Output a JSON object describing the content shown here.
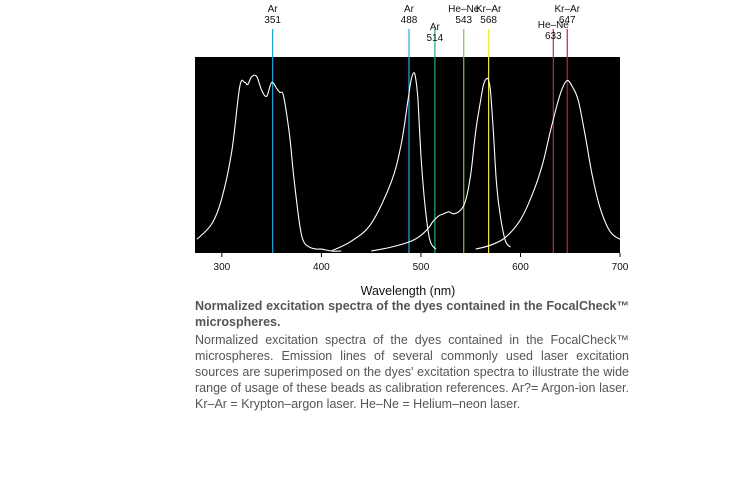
{
  "chart_data": {
    "type": "line",
    "xlabel": "Wavelength (nm)",
    "xlim": [
      273,
      700
    ],
    "ylim": [
      0,
      1
    ],
    "xticks": [
      300,
      400,
      500,
      600,
      700
    ],
    "grid": false,
    "legend": "none",
    "background_color": "#000000",
    "curve_color": "#ffffff",
    "series": [
      {
        "x": [
          275,
          290,
          300,
          310,
          318,
          323,
          326,
          330,
          335,
          340,
          345,
          350,
          355,
          358,
          362,
          368,
          372,
          378,
          382,
          388,
          395,
          400,
          410,
          420
        ],
        "y": [
          0.07,
          0.15,
          0.28,
          0.52,
          0.85,
          0.87,
          0.86,
          0.9,
          0.9,
          0.83,
          0.8,
          0.87,
          0.84,
          0.82,
          0.8,
          0.6,
          0.4,
          0.15,
          0.06,
          0.03,
          0.02,
          0.02,
          0.01,
          0.01
        ]
      },
      {
        "x": [
          410,
          430,
          450,
          470,
          480,
          487,
          490,
          493,
          495,
          497,
          500,
          503,
          507,
          510,
          515
        ],
        "y": [
          0.01,
          0.06,
          0.15,
          0.36,
          0.55,
          0.78,
          0.88,
          0.92,
          0.88,
          0.78,
          0.5,
          0.3,
          0.12,
          0.05,
          0.02
        ]
      },
      {
        "x": [
          450,
          470,
          490,
          500,
          508,
          512,
          518,
          523,
          528,
          533,
          540,
          545,
          550,
          555,
          560,
          563,
          566,
          568,
          570,
          573,
          576,
          580,
          585,
          590
        ],
        "y": [
          0.01,
          0.03,
          0.06,
          0.09,
          0.13,
          0.16,
          0.19,
          0.2,
          0.21,
          0.2,
          0.22,
          0.27,
          0.4,
          0.62,
          0.78,
          0.86,
          0.89,
          0.88,
          0.82,
          0.6,
          0.35,
          0.18,
          0.06,
          0.03
        ]
      },
      {
        "x": [
          555,
          570,
          585,
          600,
          612,
          622,
          630,
          637,
          642,
          647,
          652,
          658,
          665,
          672,
          680,
          690,
          700
        ],
        "y": [
          0.02,
          0.04,
          0.08,
          0.17,
          0.3,
          0.45,
          0.62,
          0.76,
          0.84,
          0.88,
          0.85,
          0.78,
          0.6,
          0.4,
          0.23,
          0.11,
          0.07
        ]
      }
    ],
    "laser_lines": [
      {
        "label1": "Ar",
        "label2": "351",
        "x": 351,
        "color": "#1aa3d9"
      },
      {
        "label1": "Ar",
        "label2": "488",
        "x": 488,
        "color": "#29a8e0"
      },
      {
        "label1": "Ar",
        "label2": "514",
        "x": 514,
        "color": "#1faa8c"
      },
      {
        "label1": "He–Ne",
        "label2": "543",
        "x": 543,
        "color": "#7cc243"
      },
      {
        "label1": "Kr–Ar",
        "label2": "568",
        "x": 568,
        "color": "#f2e93a"
      },
      {
        "label1": "He–Ne",
        "label2": "633",
        "x": 633,
        "color": "#d4262e"
      },
      {
        "label1": "Kr–Ar",
        "label2": "647",
        "x": 647,
        "color": "#c8222a"
      }
    ]
  },
  "caption": {
    "title": "Normalized excitation spectra of the dyes contained in the FocalCheck™ microspheres.",
    "body": "Normalized excitation spectra of the dyes contained in the FocalCheck™ microspheres. Emission lines of several commonly used laser excitation sources are superimposed on the dyes' excitation spectra to illustrate the wide range of usage of these beads as calibration references. Ar?= Argon-ion laser. Kr–Ar = Krypton–argon laser. He–Ne = Helium–neon laser."
  }
}
